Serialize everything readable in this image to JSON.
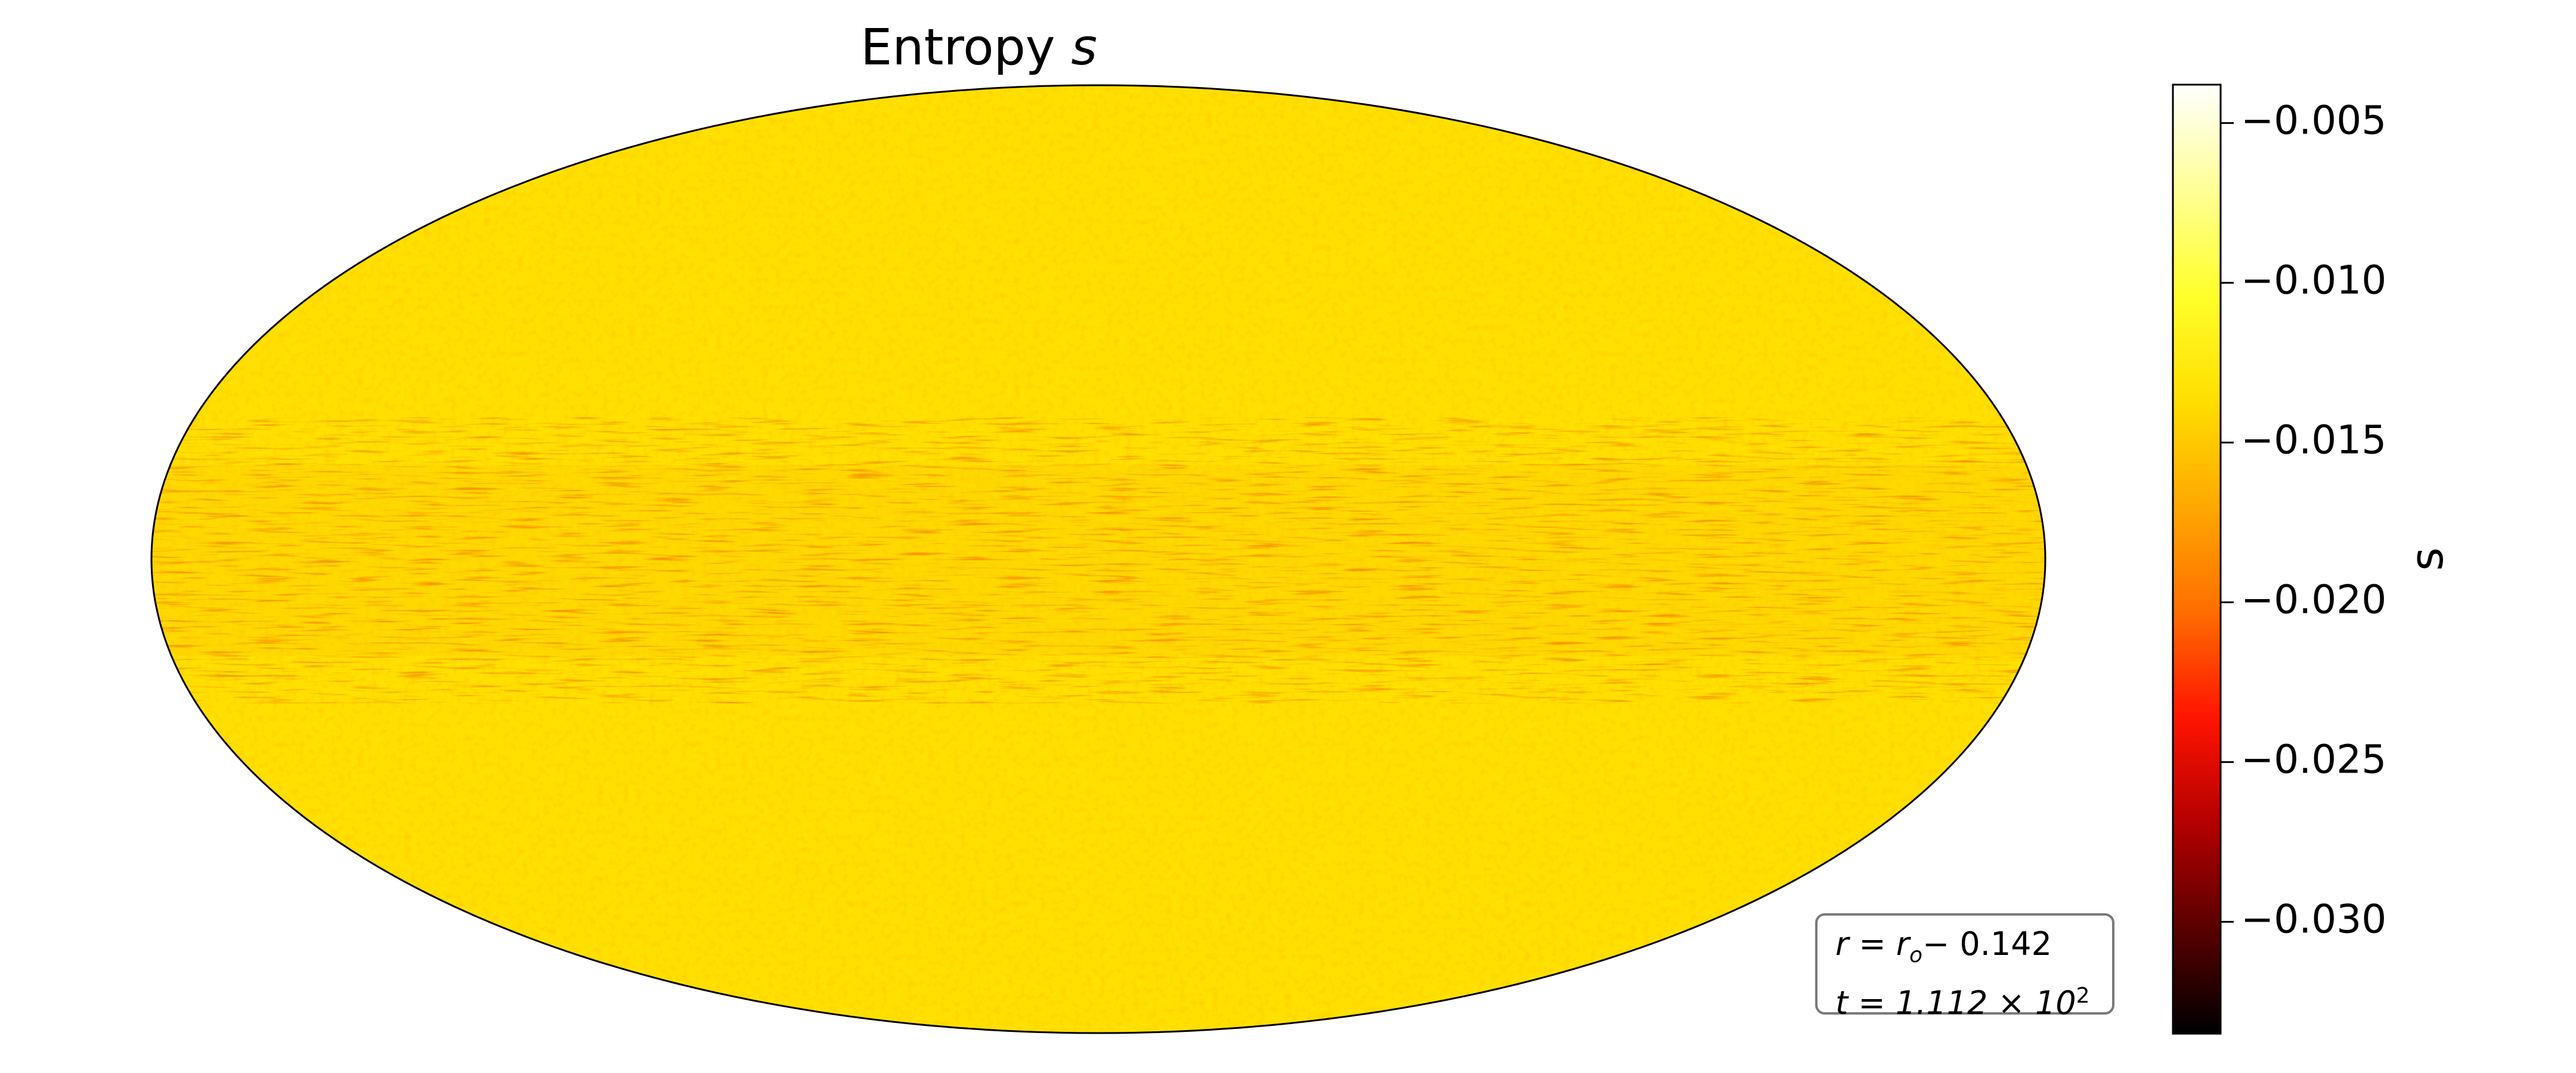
{
  "chart_data": {
    "type": "heatmap",
    "projection": "mollweide",
    "title": "Entropy",
    "title_variable": "s",
    "colormap": "hot",
    "colormap_colors": [
      "#000000",
      "#5a0000",
      "#b40000",
      "#ff1400",
      "#ff6e00",
      "#ffa800",
      "#ffde00",
      "#ffff2a",
      "#ffff96",
      "#ffffff"
    ],
    "colorbar": {
      "label": "s",
      "range": [
        -0.0335,
        -0.0038
      ],
      "ticks": [
        -0.005,
        -0.01,
        -0.015,
        -0.02,
        -0.025,
        -0.03
      ],
      "tick_labels": [
        "−0.005",
        "−0.010",
        "−0.015",
        "−0.020",
        "−0.025",
        "−0.030"
      ],
      "placement": "right"
    },
    "field_summary": {
      "dominant_value": -0.0135,
      "dominant_color": "#ffe000",
      "equatorial_band_value": -0.0145,
      "min_value": -0.0335,
      "max_value": -0.0038
    },
    "annotation": {
      "line1_lhs": "r = r",
      "line1_sub": "o",
      "line1_rhs": "−  0.142",
      "line2_lhs": "t = 1.112 × 10",
      "line2_sup": "2",
      "placement": "bottom-right"
    },
    "grid": false
  }
}
